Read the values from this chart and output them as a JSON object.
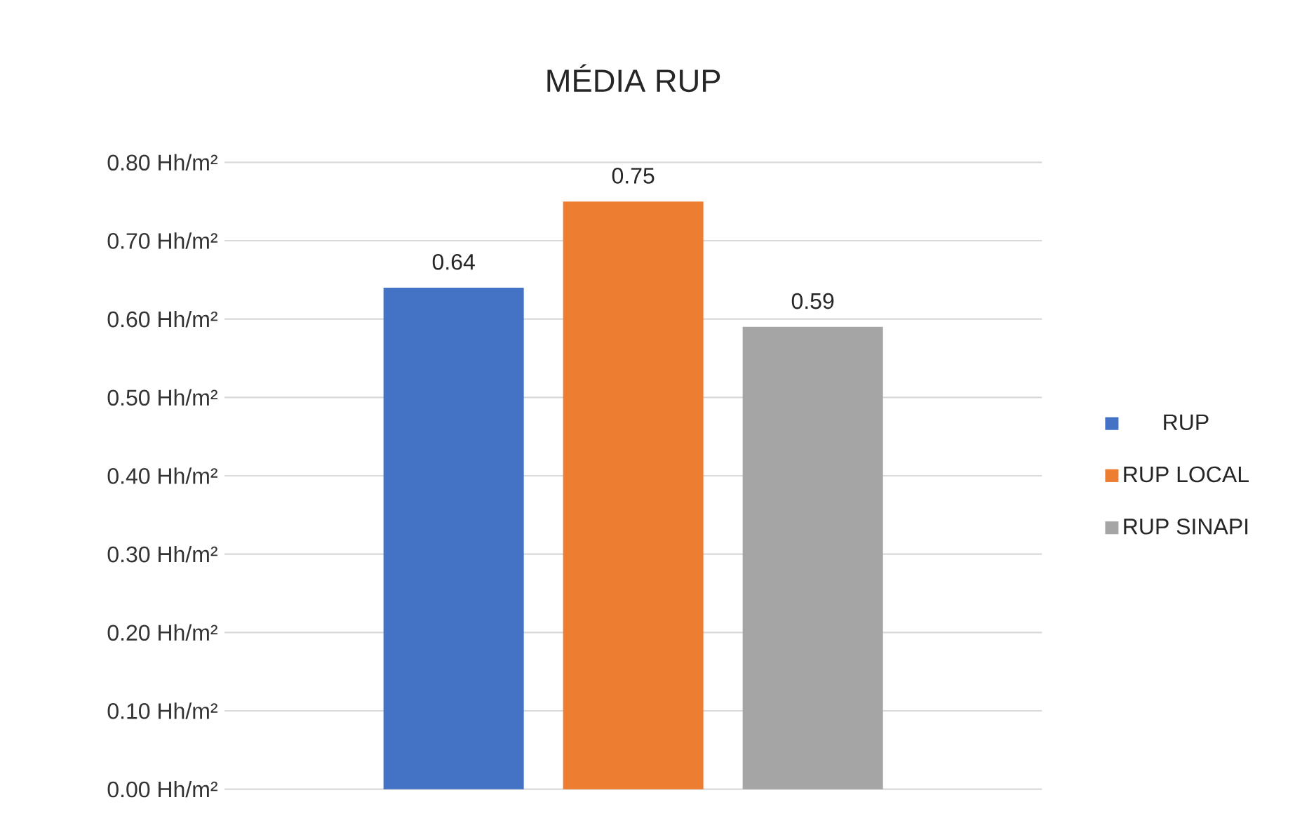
{
  "chart_data": {
    "type": "bar",
    "title": "MÉDIA RUP",
    "categories": [
      null
    ],
    "series": [
      {
        "name": "RUP",
        "color": "#4472c4",
        "values": [
          0.64
        ]
      },
      {
        "name": "RUP LOCAL",
        "color": "#ed7d31",
        "values": [
          0.75
        ]
      },
      {
        "name": "RUP SINAPI",
        "color": "#a5a5a5",
        "values": [
          0.59
        ]
      }
    ],
    "ylim": [
      0,
      0.8
    ],
    "yticks": [
      {
        "value": 0,
        "label": "0.00 Hh/m²"
      },
      {
        "value": 0.1,
        "label": "0.10 Hh/m²"
      },
      {
        "value": 0.2,
        "label": "0.20 Hh/m²"
      },
      {
        "value": 0.3,
        "label": "0.30 Hh/m²"
      },
      {
        "value": 0.4,
        "label": "0.40 Hh/m²"
      },
      {
        "value": 0.5,
        "label": "0.50 Hh/m²"
      },
      {
        "value": 0.6,
        "label": "0.60 Hh/m²"
      },
      {
        "value": 0.7,
        "label": "0.70 Hh/m²"
      },
      {
        "value": 0.8,
        "label": "0.80 Hh/m²"
      }
    ],
    "grid": "y",
    "legend": "right",
    "data_labels": true
  }
}
